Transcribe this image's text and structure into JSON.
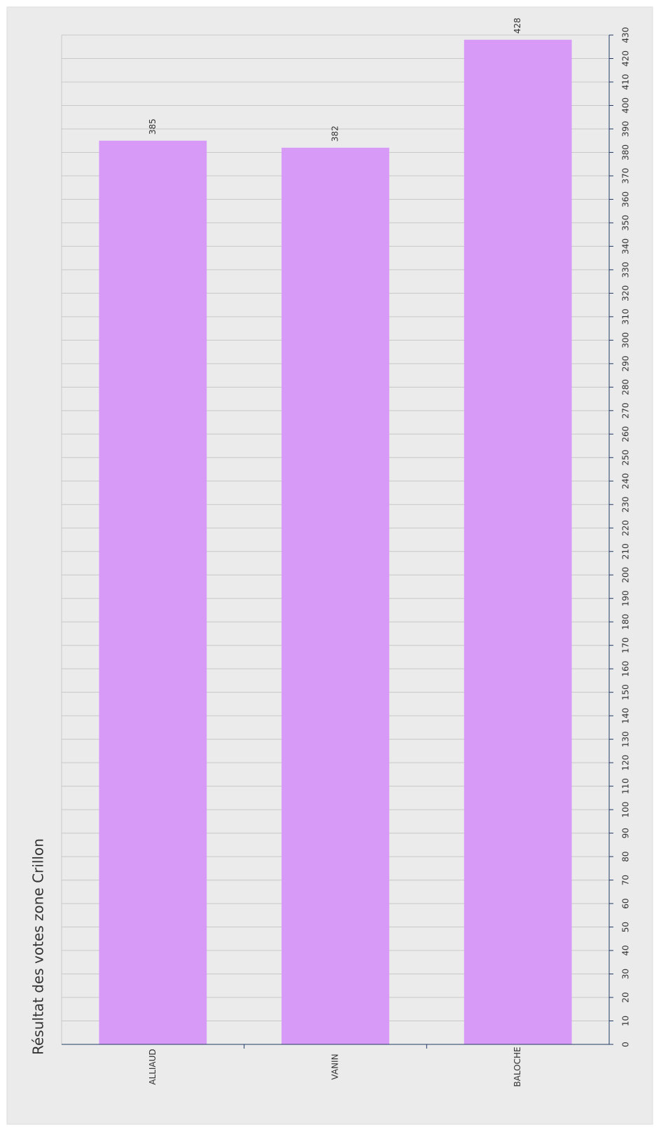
{
  "chart_data": {
    "type": "bar",
    "title": "Résultat des votes zone Crillon",
    "categories": [
      "ALLIAUD",
      "VANIN",
      "BALOCHE"
    ],
    "values": [
      385,
      382,
      428
    ],
    "color": "#d89af7",
    "ylim": [
      0,
      430
    ],
    "yticks": [
      0,
      10,
      20,
      30,
      40,
      50,
      60,
      70,
      80,
      90,
      100,
      110,
      120,
      130,
      140,
      150,
      160,
      170,
      180,
      190,
      200,
      210,
      220,
      230,
      240,
      250,
      260,
      270,
      280,
      290,
      300,
      310,
      320,
      330,
      340,
      350,
      360,
      370,
      380,
      390,
      400,
      410,
      420,
      430
    ],
    "grid": true
  }
}
